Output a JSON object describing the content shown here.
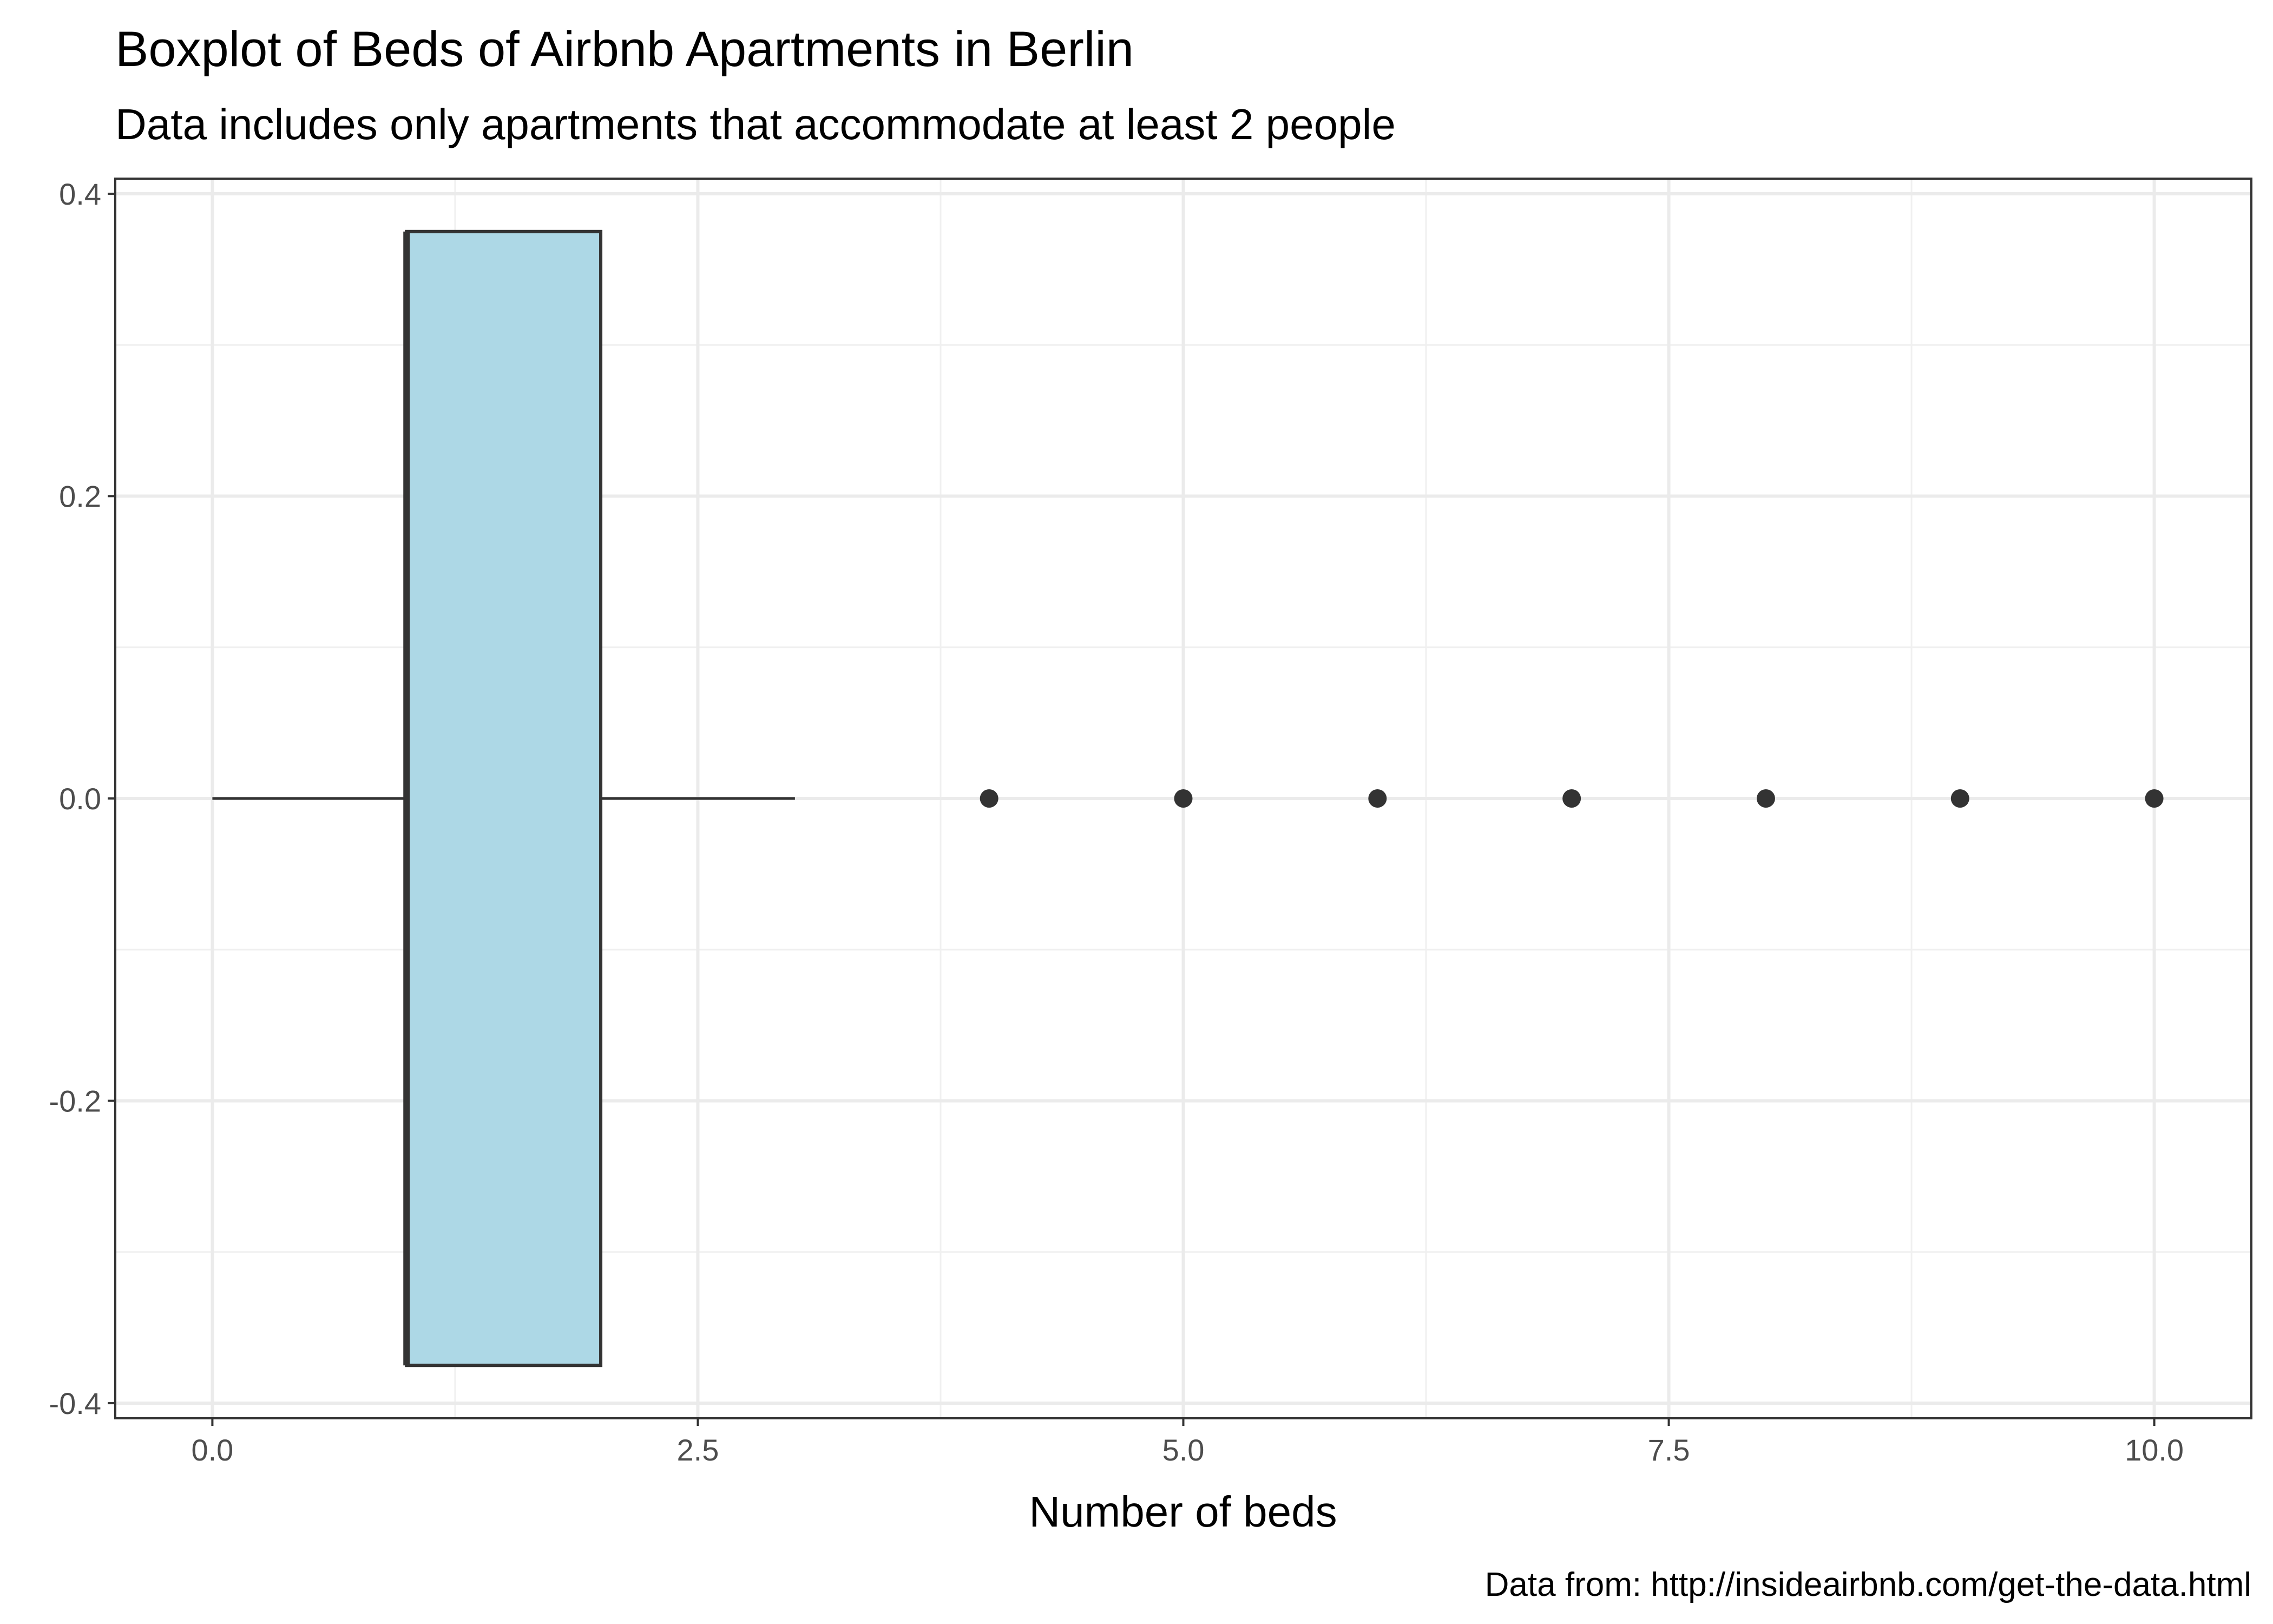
{
  "chart_data": {
    "type": "boxplot",
    "title": "Boxplot of Beds of Airbnb Apartments in Berlin",
    "subtitle": "Data includes only apartments that accommodate at least 2 people",
    "xlabel": "Number of beds",
    "ylabel": "",
    "caption": "Data from: http://insideairbnb.com/get-the-data.html",
    "xlim": [
      -0.5,
      10.5
    ],
    "ylim": [
      -0.41,
      0.41
    ],
    "grid": true,
    "x_ticks": [
      0,
      2.5,
      5,
      7.5,
      10
    ],
    "x_tick_labels": [
      "0.0",
      "2.5",
      "5.0",
      "7.5",
      "10.0"
    ],
    "y_ticks": [
      0.4,
      0.2,
      0,
      -0.2,
      -0.4
    ],
    "y_tick_labels": [
      "0.4",
      "0.2",
      "0.0",
      "-0.2",
      "-0.4"
    ],
    "box": {
      "whisker_low": 0,
      "q1": 1,
      "median": 1,
      "q3": 2,
      "whisker_high": 3,
      "y_center": 0,
      "half_width": 0.375
    },
    "outliers": [
      4,
      5,
      6,
      7,
      8,
      9,
      10
    ],
    "box_fill": "#add8e6",
    "line_color": "#333333"
  }
}
